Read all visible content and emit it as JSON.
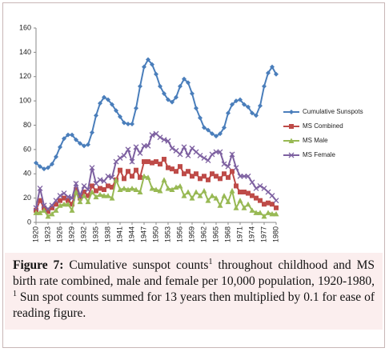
{
  "chart_data": {
    "type": "line",
    "x": [
      1920,
      1921,
      1922,
      1923,
      1924,
      1925,
      1926,
      1927,
      1928,
      1929,
      1930,
      1931,
      1932,
      1933,
      1934,
      1935,
      1936,
      1937,
      1938,
      1939,
      1940,
      1941,
      1942,
      1943,
      1944,
      1945,
      1946,
      1947,
      1948,
      1949,
      1950,
      1951,
      1952,
      1953,
      1954,
      1955,
      1956,
      1957,
      1958,
      1959,
      1960,
      1961,
      1962,
      1963,
      1964,
      1965,
      1966,
      1967,
      1968,
      1969,
      1970,
      1971,
      1972,
      1973,
      1974,
      1975,
      1976,
      1977,
      1978,
      1979,
      1980
    ],
    "xlim": [
      1920,
      1980
    ],
    "xticks": [
      1920,
      1923,
      1926,
      1929,
      1932,
      1935,
      1938,
      1941,
      1944,
      1947,
      1950,
      1953,
      1956,
      1959,
      1962,
      1965,
      1968,
      1971,
      1974,
      1977,
      1980
    ],
    "ylim": [
      0,
      160
    ],
    "yticks": [
      0,
      20,
      40,
      60,
      80,
      100,
      120,
      140,
      160
    ],
    "grid": false,
    "legend": "right",
    "series": [
      {
        "name": "Cumulative Sunspots",
        "color": "#4a7ebb",
        "marker": "diamond",
        "values": [
          49,
          46,
          44,
          45,
          48,
          54,
          62,
          69,
          72,
          72,
          68,
          65,
          63,
          64,
          74,
          88,
          98,
          103,
          101,
          97,
          92,
          87,
          82,
          81,
          81,
          94,
          112,
          128,
          134,
          130,
          122,
          112,
          106,
          101,
          99,
          103,
          112,
          118,
          115,
          106,
          94,
          86,
          78,
          76,
          73,
          71,
          73,
          78,
          90,
          97,
          100,
          101,
          97,
          95,
          90,
          88,
          96,
          112,
          123,
          128,
          122
        ]
      },
      {
        "name": "MS Combined",
        "color": "#be4b48",
        "marker": "square",
        "values": [
          10,
          18,
          12,
          9,
          12,
          15,
          18,
          20,
          18,
          15,
          27,
          20,
          25,
          22,
          30,
          26,
          28,
          27,
          30,
          29,
          35,
          43,
          36,
          42,
          38,
          43,
          37,
          50,
          50,
          49,
          50,
          48,
          52,
          45,
          44,
          42,
          46,
          40,
          42,
          38,
          40,
          36,
          38,
          35,
          40,
          38,
          36,
          40,
          37,
          42,
          30,
          25,
          25,
          24,
          22,
          20,
          18,
          15,
          16,
          15,
          12
        ]
      },
      {
        "name": "MS Male",
        "color": "#98b954",
        "marker": "triangle",
        "values": [
          8,
          8,
          10,
          5,
          7,
          10,
          14,
          15,
          15,
          10,
          25,
          17,
          22,
          17,
          25,
          21,
          23,
          22,
          22,
          20,
          35,
          27,
          28,
          27,
          28,
          27,
          25,
          38,
          37,
          28,
          27,
          26,
          35,
          28,
          27,
          29,
          30,
          22,
          25,
          20,
          25,
          22,
          26,
          18,
          22,
          20,
          14,
          22,
          17,
          26,
          12,
          18,
          12,
          15,
          10,
          8,
          8,
          5,
          8,
          7,
          7
        ]
      },
      {
        "name": "MS Female",
        "color": "#7d60a0",
        "marker": "x",
        "values": [
          12,
          28,
          14,
          11,
          14,
          18,
          22,
          24,
          21,
          20,
          32,
          22,
          30,
          27,
          45,
          32,
          35,
          34,
          38,
          37,
          50,
          53,
          55,
          60,
          50,
          62,
          57,
          63,
          63,
          72,
          73,
          70,
          68,
          67,
          61,
          59,
          56,
          62,
          55,
          61,
          58,
          55,
          53,
          51,
          56,
          58,
          58,
          48,
          46,
          56,
          45,
          38,
          38,
          38,
          33,
          28,
          30,
          28,
          25,
          22,
          18
        ]
      }
    ]
  },
  "caption": {
    "label": "Figure 7:",
    "text1": " Cumulative sunspot counts",
    "sup1": "1",
    "text2": " throughout childhood and MS birth rate combined, male and female per 10,000 population, 1920-1980, ",
    "sup2": "1",
    "text3": " Sun spot counts summed for 13 years then multiplied by 0.1 for ease of reading figure."
  }
}
